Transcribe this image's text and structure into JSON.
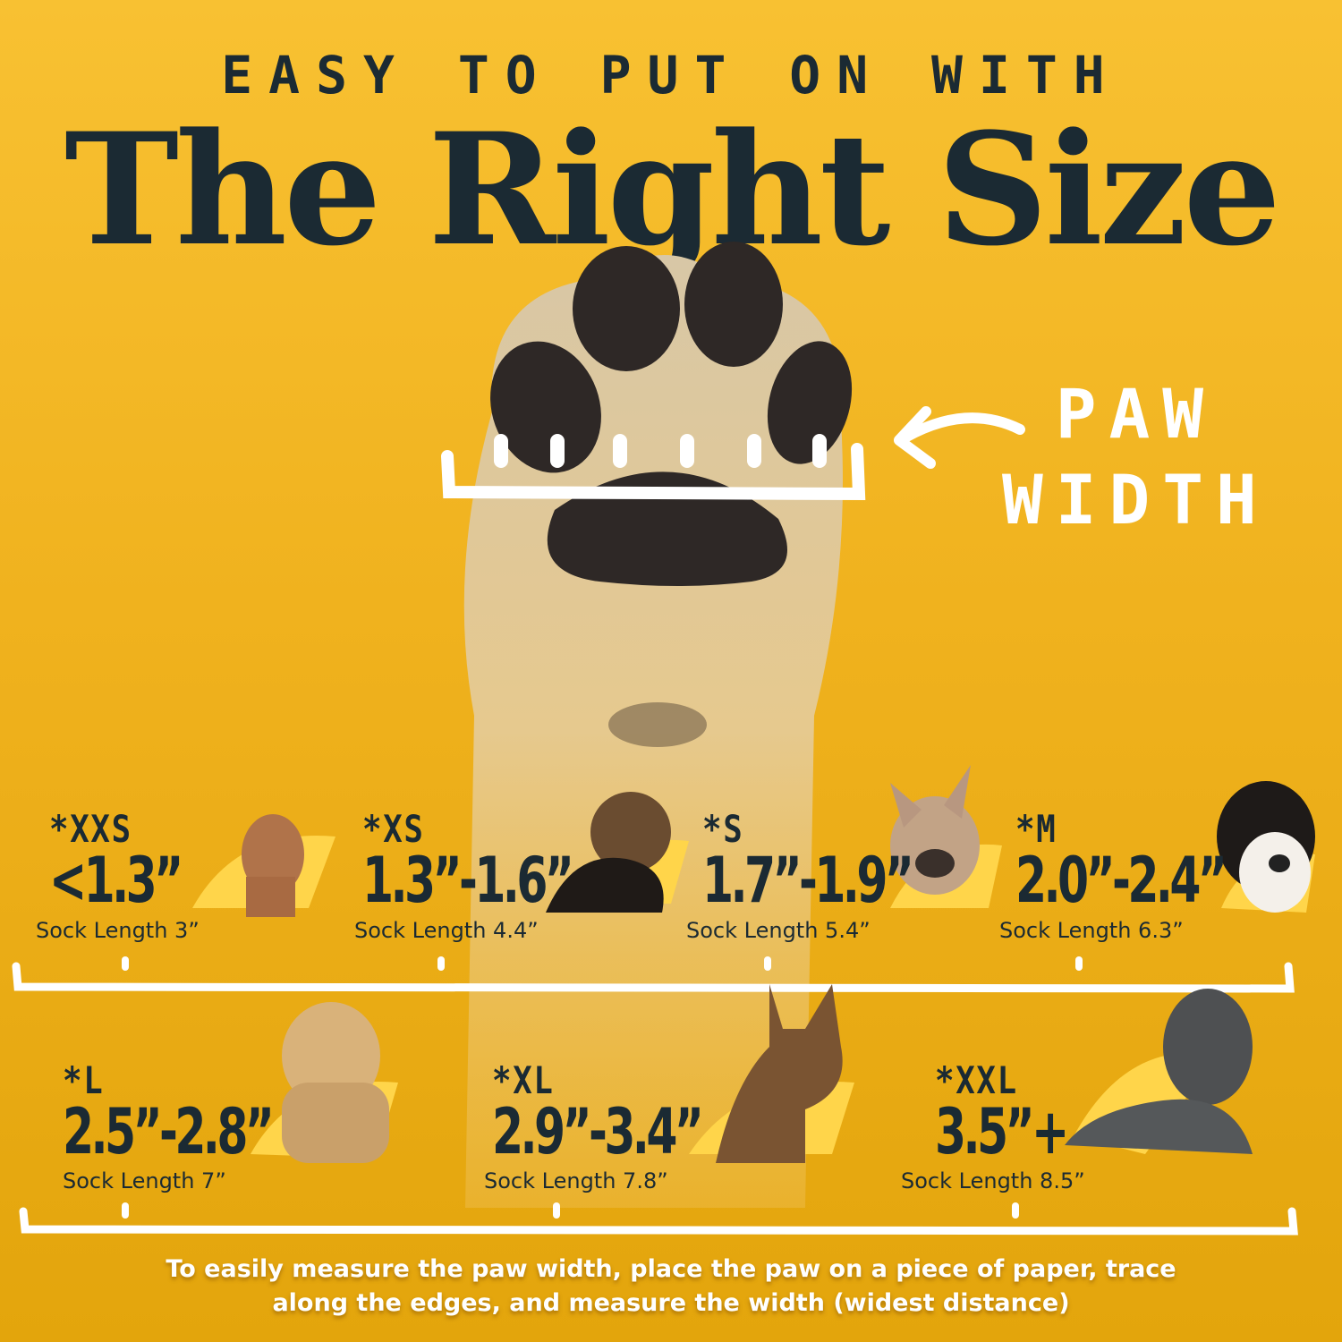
{
  "header": {
    "kicker": "EASY TO PUT ON WITH",
    "title": "The Right Size"
  },
  "paw_label": {
    "line1": "PAW",
    "line2": "WIDTH"
  },
  "sizes_row1": [
    {
      "code": "*XXS",
      "range": "<1.3”",
      "sock_length": "Sock Length 3”",
      "dog": "chihuahua"
    },
    {
      "code": "*XS",
      "range": "1.3”-1.6”",
      "sock_length": "Sock Length 4.4”",
      "dog": "yorkshire-terrier"
    },
    {
      "code": "*S",
      "range": "1.7”-1.9”",
      "sock_length": "Sock Length 5.4”",
      "dog": "french-bulldog"
    },
    {
      "code": "*M",
      "range": "2.0”-2.4”",
      "sock_length": "Sock Length 6.3”",
      "dog": "bernese-mountain-dog"
    }
  ],
  "sizes_row2": [
    {
      "code": "*L",
      "range": "2.5”-2.8”",
      "sock_length": "Sock Length 7”",
      "dog": "golden-retriever"
    },
    {
      "code": "*XL",
      "range": "2.9”-3.4”",
      "sock_length": "Sock Length 7.8”",
      "dog": "german-shepherd"
    },
    {
      "code": "*XXL",
      "range": "3.5”+",
      "sock_length": "Sock Length 8.5”",
      "dog": "great-dane"
    }
  ],
  "note": {
    "line1": "To easily measure the paw width, place the paw on a piece of paper, trace",
    "line2": "along the edges, and measure the width (widest distance)"
  },
  "colors": {
    "text_dark": "#1b2a33",
    "bg_top": "#f8c132",
    "bg_bottom": "#e3a50c",
    "accent_white": "#ffffff"
  }
}
